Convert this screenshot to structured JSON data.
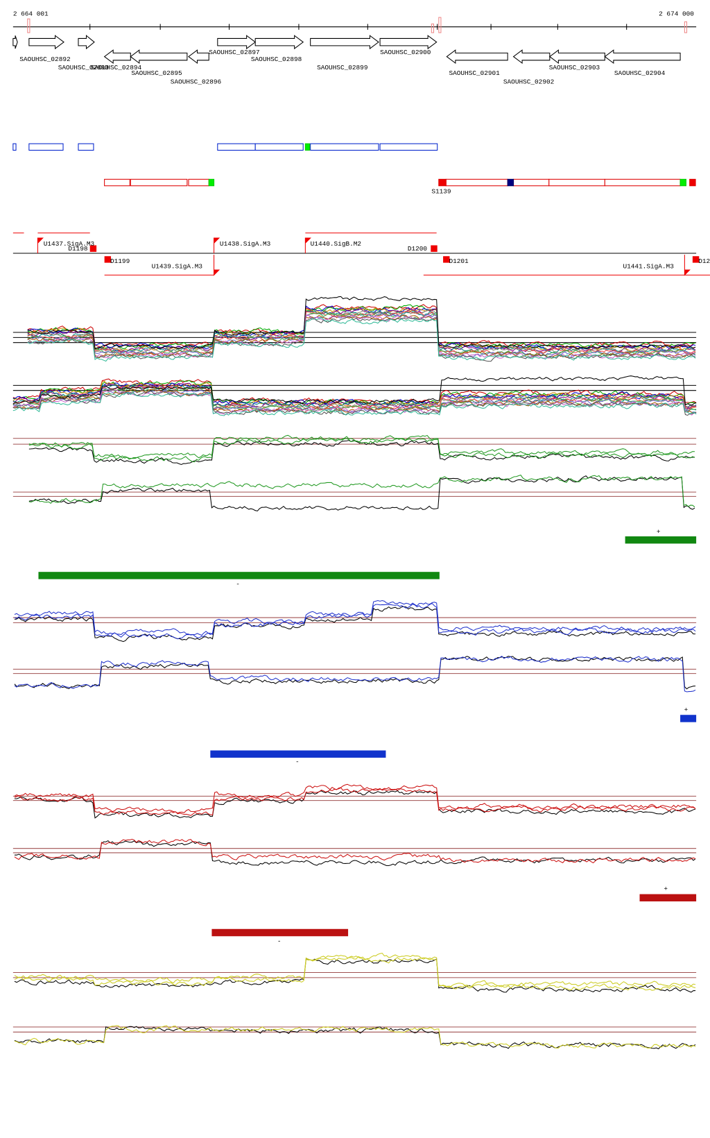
{
  "axis": {
    "start_label": "2 664 001",
    "end_label": "2 674 000"
  },
  "genes": [
    "SAOUHSC_02892",
    "SAOUHSC_02893",
    "SAOUHSC_02894",
    "SAOUHSC_02895",
    "SAOUHSC_02896",
    "SAOUHSC_02897",
    "SAOUHSC_02898",
    "SAOUHSC_02899",
    "SAOUHSC_02900",
    "SAOUHSC_02901",
    "SAOUHSC_02902",
    "SAOUHSC_02903",
    "SAOUHSC_02904"
  ],
  "segments": [
    "S1139"
  ],
  "regions": [
    "U1437.SigA.M3",
    "D1198",
    "D1199",
    "U1439.SigA.M3",
    "U1438.SigA.M3",
    "U1440.SigB.M2",
    "D1200",
    "D1201",
    "U1441.SigA.M3",
    "D12"
  ],
  "strand_labels": [
    "+",
    "-",
    "+",
    "-",
    "+",
    "-"
  ]
}
